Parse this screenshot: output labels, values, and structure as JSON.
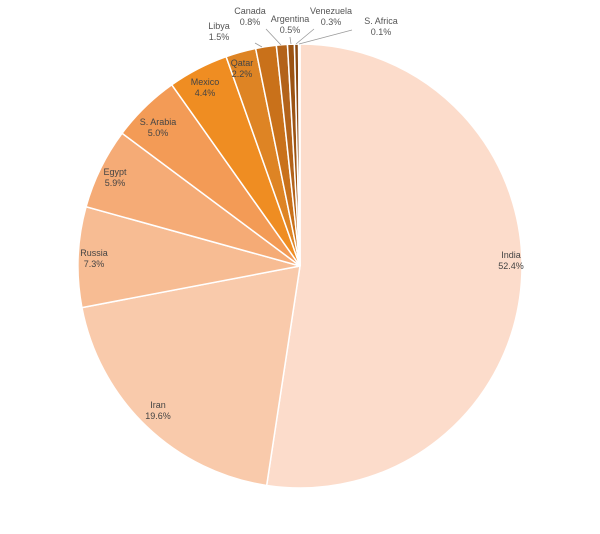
{
  "chart_data": {
    "type": "pie",
    "title": "",
    "start_angle_deg": 0,
    "direction": "clockwise",
    "slices": [
      {
        "name": "India",
        "value": 52.4,
        "label": "52.4%",
        "color": "#FCDCCB"
      },
      {
        "name": "Iran",
        "value": 19.6,
        "label": "19.6%",
        "color": "#F9CAAB"
      },
      {
        "name": "Russia",
        "value": 7.3,
        "label": "7.3%",
        "color": "#F7BC93"
      },
      {
        "name": "Egypt",
        "value": 5.9,
        "label": "5.9%",
        "color": "#F5AB76"
      },
      {
        "name": "S. Arabia",
        "value": 5.0,
        "label": "5.0%",
        "color": "#F39B56"
      },
      {
        "name": "Mexico",
        "value": 4.4,
        "label": "4.4%",
        "color": "#EF8D22"
      },
      {
        "name": "Qatar",
        "value": 2.2,
        "label": "2.2%",
        "color": "#DE8424"
      },
      {
        "name": "Libya",
        "value": 1.5,
        "label": "1.5%",
        "color": "#C9711A"
      },
      {
        "name": "Canada",
        "value": 0.8,
        "label": "0.8%",
        "color": "#B3631A"
      },
      {
        "name": "Argentina",
        "value": 0.5,
        "label": "0.5%",
        "color": "#9C5414"
      },
      {
        "name": "Venezuela",
        "value": 0.3,
        "label": "0.3%",
        "color": "#884811"
      },
      {
        "name": "S. Africa",
        "value": 0.1,
        "label": "0.1%",
        "color": "#6E3A0D"
      }
    ]
  }
}
